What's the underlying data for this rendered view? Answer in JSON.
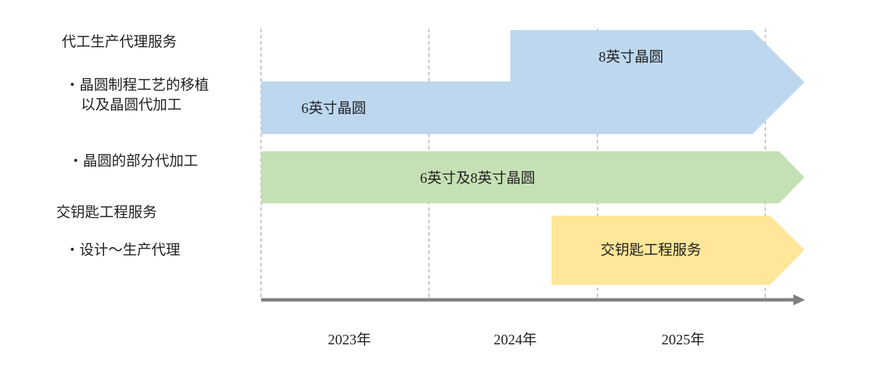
{
  "service_labels": [
    {
      "text": "代工生产代理服务"
    },
    {
      "lines": [
        "・晶圆制程工艺的移植",
        "以及晶圆代加工"
      ]
    },
    {
      "text": "・晶圆的部分代加工"
    },
    {
      "text": "交钥匙工程服务"
    },
    {
      "text": "・设计～生产代理"
    }
  ],
  "arrows": [
    {
      "labels": [
        "8英寸晶圆",
        "6英寸晶圆"
      ]
    },
    {
      "labels": [
        "6英寸及8英寸晶圆"
      ]
    },
    {
      "labels": [
        "交钥匙工程服务"
      ]
    }
  ],
  "timeline": {
    "years": [
      "2023年",
      "2024年",
      "2025年"
    ]
  }
}
